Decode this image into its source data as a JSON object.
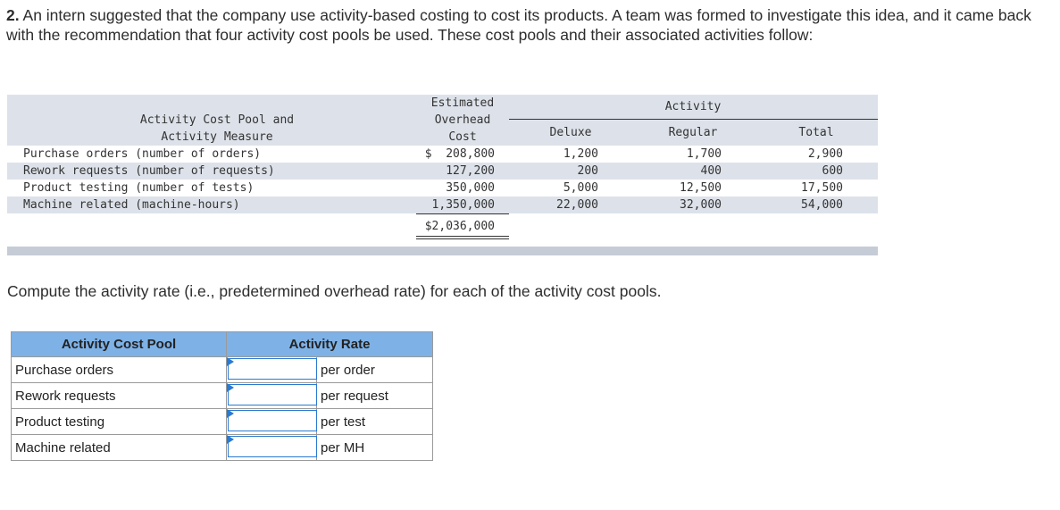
{
  "question": {
    "number": "2.",
    "text": "An intern suggested that the company use activity-based costing to cost its products. A team was formed to investigate this idea, and it came back with the recommendation that four activity cost pools be used. These cost pools and their associated activities follow:"
  },
  "data_table": {
    "header_pool": [
      "Activity Cost Pool and",
      "Activity Measure"
    ],
    "header_overhead": [
      "Estimated",
      "Overhead",
      "Cost"
    ],
    "header_activity": "Activity",
    "header_deluxe": "Deluxe",
    "header_regular": "Regular",
    "header_total": "Total",
    "rows": [
      {
        "pool": "Purchase orders (number of orders)",
        "cost": "$  208,800",
        "deluxe": "1,200",
        "regular": "1,700",
        "total": "2,900"
      },
      {
        "pool": "Rework requests (number of requests)",
        "cost": "127,200",
        "deluxe": "200",
        "regular": "400",
        "total": "600"
      },
      {
        "pool": "Product testing (number of tests)",
        "cost": "350,000",
        "deluxe": "5,000",
        "regular": "12,500",
        "total": "17,500"
      },
      {
        "pool": "Machine related (machine-hours)",
        "cost": "1,350,000",
        "deluxe": "22,000",
        "regular": "32,000",
        "total": "54,000"
      }
    ],
    "total_cost": "$2,036,000"
  },
  "prompt": "Compute the activity rate (i.e., predetermined overhead rate) for each of the activity cost pools.",
  "answer_table": {
    "col_pool": "Activity Cost Pool",
    "col_rate": "Activity Rate",
    "rows": [
      {
        "pool": "Purchase orders",
        "value": "",
        "unit": "per order"
      },
      {
        "pool": "Rework requests",
        "value": "",
        "unit": "per request"
      },
      {
        "pool": "Product testing",
        "value": "",
        "unit": "per test"
      },
      {
        "pool": "Machine related",
        "value": "",
        "unit": "per MH"
      }
    ]
  },
  "colors": {
    "band": "#dde2ea",
    "header": "#7eb1e6",
    "input_border": "#2a7ad1"
  }
}
